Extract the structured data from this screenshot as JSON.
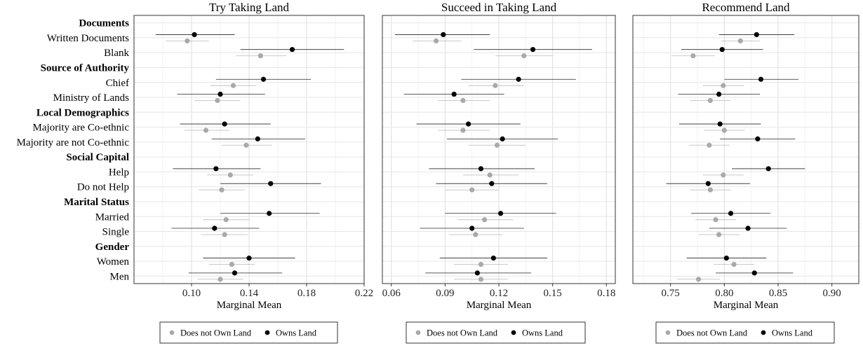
{
  "chart_data": {
    "type": "scatter",
    "description_rows": [
      {
        "label": "Documents",
        "bold": true
      },
      {
        "label": "Written Documents",
        "bold": false
      },
      {
        "label": "Blank",
        "bold": false
      },
      {
        "label": "Source of Authority",
        "bold": true
      },
      {
        "label": "Chief",
        "bold": false
      },
      {
        "label": "Ministry of Lands",
        "bold": false
      },
      {
        "label": "Local Demographics",
        "bold": true
      },
      {
        "label": "Majority are Co-ethnic",
        "bold": false
      },
      {
        "label": "Majority are not Co-ethnic",
        "bold": false
      },
      {
        "label": "Social Capital",
        "bold": true
      },
      {
        "label": "Help",
        "bold": false
      },
      {
        "label": "Do not Help",
        "bold": false
      },
      {
        "label": "Marital Status",
        "bold": true
      },
      {
        "label": "Married",
        "bold": false
      },
      {
        "label": "Single",
        "bold": false
      },
      {
        "label": "Gender",
        "bold": true
      },
      {
        "label": "Women",
        "bold": false
      },
      {
        "label": "Men",
        "bold": false
      }
    ],
    "series_colors": {
      "Does not Own Land": "#a9a9a9",
      "Owns Land": "#000000"
    },
    "panels": [
      {
        "title": "Try Taking Land",
        "xlabel": "Marginal Mean",
        "xlim": [
          0.06,
          0.22
        ],
        "ticks": [
          0.1,
          0.14,
          0.18,
          0.22
        ],
        "tick_labels": [
          "0.10",
          "0.14",
          "0.18",
          "0.22"
        ],
        "legend": [
          "Does not Own Land",
          "Owns Land"
        ],
        "series": [
          {
            "name": "Does not Own Land",
            "points": [
              {
                "row": "Written Documents",
                "x": 0.097,
                "lo": 0.082,
                "hi": 0.112
              },
              {
                "row": "Blank",
                "x": 0.148,
                "lo": 0.131,
                "hi": 0.166
              },
              {
                "row": "Chief",
                "x": 0.129,
                "lo": 0.113,
                "hi": 0.145
              },
              {
                "row": "Ministry of Lands",
                "x": 0.118,
                "lo": 0.102,
                "hi": 0.134
              },
              {
                "row": "Majority are Co-ethnic",
                "x": 0.11,
                "lo": 0.095,
                "hi": 0.126
              },
              {
                "row": "Majority are not Co-ethnic",
                "x": 0.138,
                "lo": 0.121,
                "hi": 0.156
              },
              {
                "row": "Help",
                "x": 0.127,
                "lo": 0.111,
                "hi": 0.143
              },
              {
                "row": "Do not Help",
                "x": 0.121,
                "lo": 0.105,
                "hi": 0.137
              },
              {
                "row": "Married",
                "x": 0.124,
                "lo": 0.108,
                "hi": 0.14
              },
              {
                "row": "Single",
                "x": 0.123,
                "lo": 0.107,
                "hi": 0.139
              },
              {
                "row": "Women",
                "x": 0.128,
                "lo": 0.112,
                "hi": 0.144
              },
              {
                "row": "Men",
                "x": 0.12,
                "lo": 0.104,
                "hi": 0.136
              }
            ]
          },
          {
            "name": "Owns Land",
            "points": [
              {
                "row": "Written Documents",
                "x": 0.102,
                "lo": 0.075,
                "hi": 0.13
              },
              {
                "row": "Blank",
                "x": 0.17,
                "lo": 0.134,
                "hi": 0.206
              },
              {
                "row": "Chief",
                "x": 0.15,
                "lo": 0.117,
                "hi": 0.183
              },
              {
                "row": "Ministry of Lands",
                "x": 0.12,
                "lo": 0.09,
                "hi": 0.151
              },
              {
                "row": "Majority are Co-ethnic",
                "x": 0.123,
                "lo": 0.092,
                "hi": 0.155
              },
              {
                "row": "Majority are not Co-ethnic",
                "x": 0.146,
                "lo": 0.114,
                "hi": 0.179
              },
              {
                "row": "Help",
                "x": 0.117,
                "lo": 0.087,
                "hi": 0.148
              },
              {
                "row": "Do not Help",
                "x": 0.155,
                "lo": 0.12,
                "hi": 0.19
              },
              {
                "row": "Married",
                "x": 0.154,
                "lo": 0.12,
                "hi": 0.189
              },
              {
                "row": "Single",
                "x": 0.116,
                "lo": 0.086,
                "hi": 0.147
              },
              {
                "row": "Women",
                "x": 0.14,
                "lo": 0.108,
                "hi": 0.172
              },
              {
                "row": "Men",
                "x": 0.13,
                "lo": 0.098,
                "hi": 0.163
              }
            ]
          }
        ]
      },
      {
        "title": "Succeed in Taking Land",
        "xlabel": "Marginal Mean",
        "xlim": [
          0.055,
          0.185
        ],
        "ticks": [
          0.06,
          0.09,
          0.12,
          0.15,
          0.18
        ],
        "tick_labels": [
          "0.06",
          "0.09",
          "0.12",
          "0.15",
          "0.18"
        ],
        "legend": [
          "Does not Own Land",
          "Owns Land"
        ],
        "series": [
          {
            "name": "Does not Own Land",
            "points": [
              {
                "row": "Written Documents",
                "x": 0.085,
                "lo": 0.072,
                "hi": 0.099
              },
              {
                "row": "Blank",
                "x": 0.134,
                "lo": 0.118,
                "hi": 0.15
              },
              {
                "row": "Chief",
                "x": 0.118,
                "lo": 0.103,
                "hi": 0.134
              },
              {
                "row": "Ministry of Lands",
                "x": 0.1,
                "lo": 0.086,
                "hi": 0.115
              },
              {
                "row": "Majority are Co-ethnic",
                "x": 0.1,
                "lo": 0.086,
                "hi": 0.115
              },
              {
                "row": "Majority are not Co-ethnic",
                "x": 0.119,
                "lo": 0.103,
                "hi": 0.135
              },
              {
                "row": "Help",
                "x": 0.115,
                "lo": 0.1,
                "hi": 0.131
              },
              {
                "row": "Do not Help",
                "x": 0.105,
                "lo": 0.09,
                "hi": 0.12
              },
              {
                "row": "Married",
                "x": 0.112,
                "lo": 0.097,
                "hi": 0.128
              },
              {
                "row": "Single",
                "x": 0.107,
                "lo": 0.092,
                "hi": 0.122
              },
              {
                "row": "Women",
                "x": 0.11,
                "lo": 0.095,
                "hi": 0.125
              },
              {
                "row": "Men",
                "x": 0.11,
                "lo": 0.095,
                "hi": 0.125
              }
            ]
          },
          {
            "name": "Owns Land",
            "points": [
              {
                "row": "Written Documents",
                "x": 0.089,
                "lo": 0.062,
                "hi": 0.115
              },
              {
                "row": "Blank",
                "x": 0.139,
                "lo": 0.106,
                "hi": 0.172
              },
              {
                "row": "Chief",
                "x": 0.131,
                "lo": 0.099,
                "hi": 0.163
              },
              {
                "row": "Ministry of Lands",
                "x": 0.095,
                "lo": 0.067,
                "hi": 0.123
              },
              {
                "row": "Majority are Co-ethnic",
                "x": 0.103,
                "lo": 0.074,
                "hi": 0.132
              },
              {
                "row": "Majority are not Co-ethnic",
                "x": 0.122,
                "lo": 0.091,
                "hi": 0.153
              },
              {
                "row": "Help",
                "x": 0.11,
                "lo": 0.081,
                "hi": 0.14
              },
              {
                "row": "Do not Help",
                "x": 0.116,
                "lo": 0.085,
                "hi": 0.147
              },
              {
                "row": "Married",
                "x": 0.121,
                "lo": 0.09,
                "hi": 0.152
              },
              {
                "row": "Single",
                "x": 0.105,
                "lo": 0.076,
                "hi": 0.134
              },
              {
                "row": "Women",
                "x": 0.117,
                "lo": 0.087,
                "hi": 0.147
              },
              {
                "row": "Men",
                "x": 0.108,
                "lo": 0.079,
                "hi": 0.138
              }
            ]
          }
        ]
      },
      {
        "title": "Recommend Land",
        "xlabel": "Marginal Mean",
        "xlim": [
          0.715,
          0.925
        ],
        "ticks": [
          0.75,
          0.8,
          0.85,
          0.9
        ],
        "tick_labels": [
          "0.75",
          "0.80",
          "0.85",
          "0.90"
        ],
        "legend": [
          "Does not Own Land",
          "Owns Land"
        ],
        "series": [
          {
            "name": "Does not Own Land",
            "points": [
              {
                "row": "Written Documents",
                "x": 0.815,
                "lo": 0.797,
                "hi": 0.833
              },
              {
                "row": "Blank",
                "x": 0.771,
                "lo": 0.751,
                "hi": 0.791
              },
              {
                "row": "Chief",
                "x": 0.799,
                "lo": 0.78,
                "hi": 0.818
              },
              {
                "row": "Ministry of Lands",
                "x": 0.787,
                "lo": 0.768,
                "hi": 0.806
              },
              {
                "row": "Majority are Co-ethnic",
                "x": 0.8,
                "lo": 0.781,
                "hi": 0.819
              },
              {
                "row": "Majority are not Co-ethnic",
                "x": 0.786,
                "lo": 0.767,
                "hi": 0.805
              },
              {
                "row": "Help",
                "x": 0.799,
                "lo": 0.78,
                "hi": 0.818
              },
              {
                "row": "Do not Help",
                "x": 0.787,
                "lo": 0.768,
                "hi": 0.806
              },
              {
                "row": "Married",
                "x": 0.792,
                "lo": 0.773,
                "hi": 0.811
              },
              {
                "row": "Single",
                "x": 0.795,
                "lo": 0.776,
                "hi": 0.814
              },
              {
                "row": "Women",
                "x": 0.809,
                "lo": 0.79,
                "hi": 0.828
              },
              {
                "row": "Men",
                "x": 0.776,
                "lo": 0.756,
                "hi": 0.796
              }
            ]
          },
          {
            "name": "Owns Land",
            "points": [
              {
                "row": "Written Documents",
                "x": 0.83,
                "lo": 0.795,
                "hi": 0.865
              },
              {
                "row": "Blank",
                "x": 0.798,
                "lo": 0.76,
                "hi": 0.836
              },
              {
                "row": "Chief",
                "x": 0.834,
                "lo": 0.8,
                "hi": 0.869
              },
              {
                "row": "Ministry of Lands",
                "x": 0.795,
                "lo": 0.757,
                "hi": 0.833
              },
              {
                "row": "Majority are Co-ethnic",
                "x": 0.796,
                "lo": 0.758,
                "hi": 0.834
              },
              {
                "row": "Majority are not Co-ethnic",
                "x": 0.831,
                "lo": 0.796,
                "hi": 0.866
              },
              {
                "row": "Help",
                "x": 0.841,
                "lo": 0.807,
                "hi": 0.875
              },
              {
                "row": "Do not Help",
                "x": 0.785,
                "lo": 0.746,
                "hi": 0.824
              },
              {
                "row": "Married",
                "x": 0.806,
                "lo": 0.769,
                "hi": 0.843
              },
              {
                "row": "Single",
                "x": 0.822,
                "lo": 0.786,
                "hi": 0.858
              },
              {
                "row": "Women",
                "x": 0.802,
                "lo": 0.765,
                "hi": 0.839
              },
              {
                "row": "Men",
                "x": 0.828,
                "lo": 0.792,
                "hi": 0.864
              }
            ]
          }
        ]
      }
    ]
  }
}
